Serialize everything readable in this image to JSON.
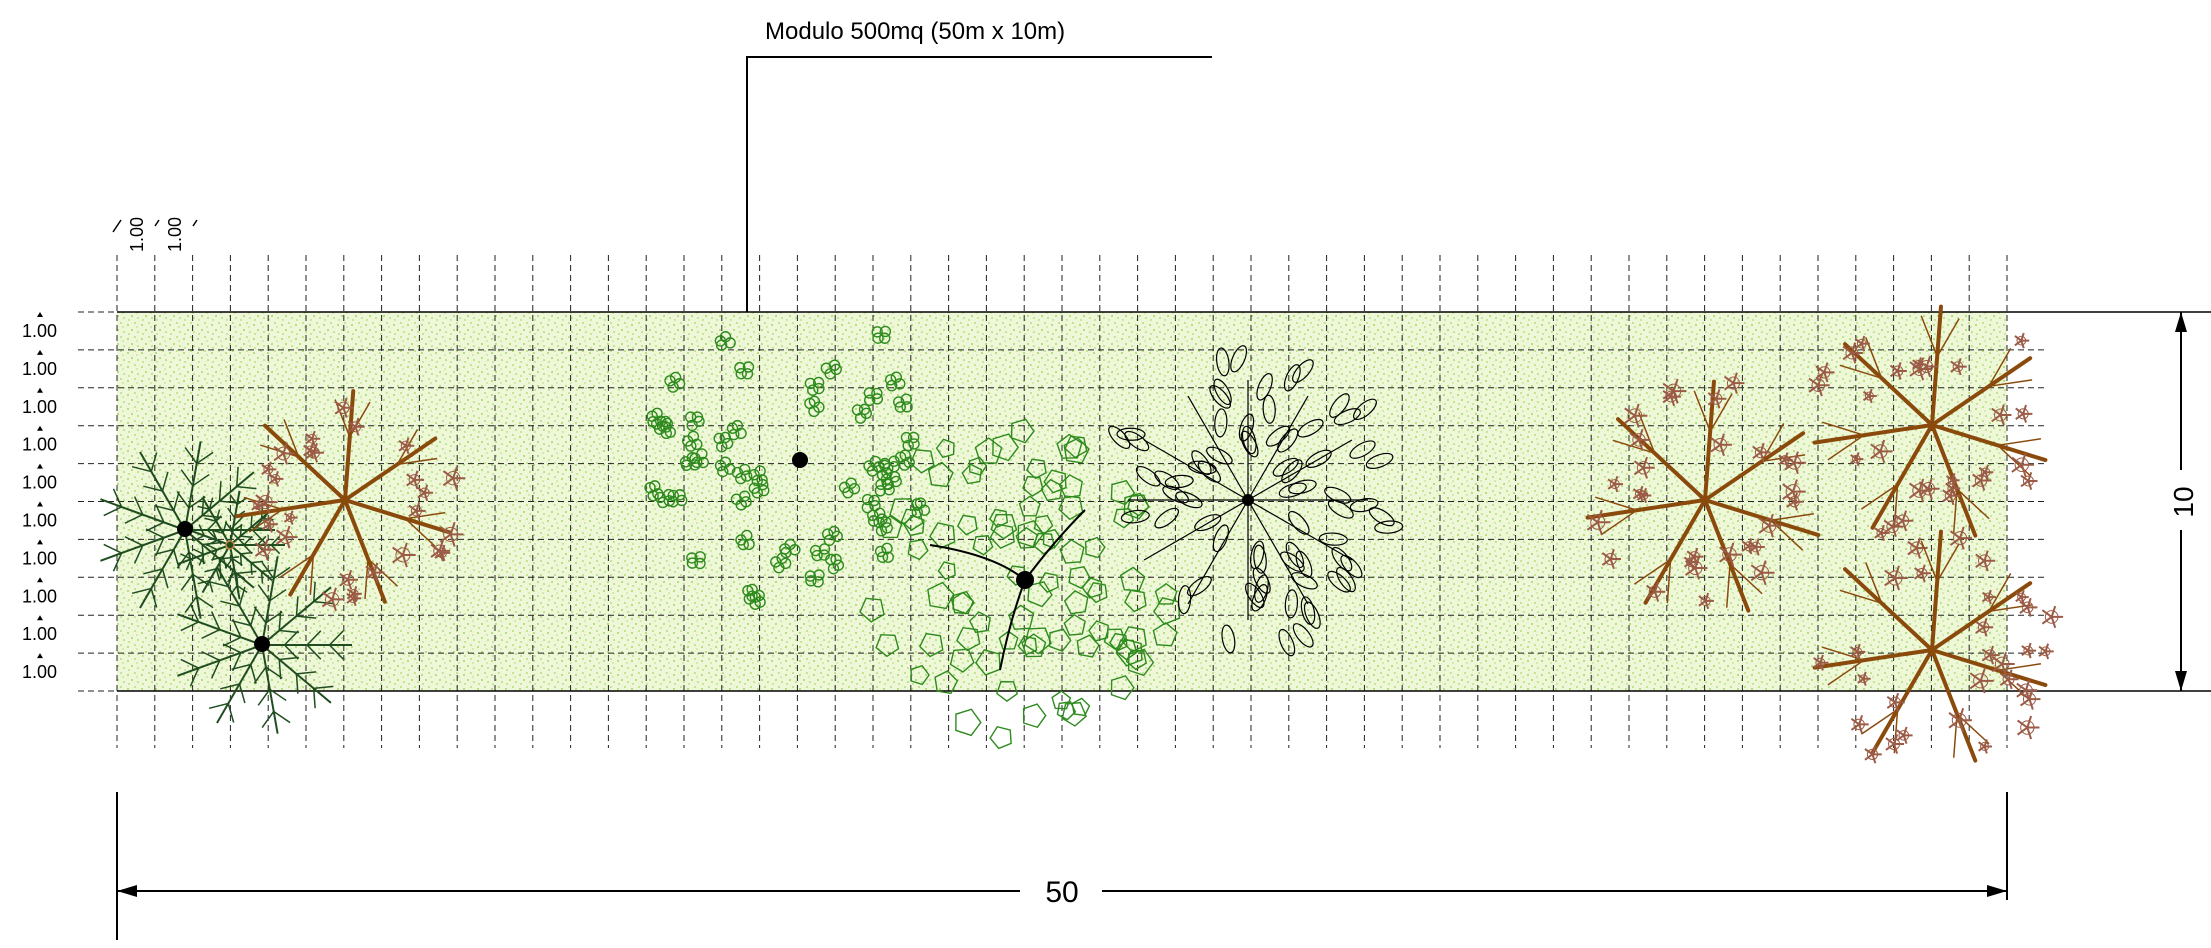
{
  "title": "Modulo 500mq (50m x 10m)",
  "dimensions": {
    "width_label": "50",
    "height_label": "10",
    "cell_label": "1.00",
    "columns": 50,
    "rows": 10
  },
  "colors": {
    "lawn_fill": "#eef7d8",
    "lawn_dots": "#8ccf3c",
    "grid": "#222222",
    "dark_green_tree": "#1f4d1f",
    "green_tree": "#2e8b1e",
    "brown_tree": "#9b5b46",
    "brown_trunk": "#8a4a0c",
    "black_tree": "#000000"
  },
  "trees": [
    {
      "kind": "dark-green-shrub-cluster",
      "color": "dark_green_tree"
    },
    {
      "kind": "brown-flowering-tree",
      "color": "brown_tree"
    },
    {
      "kind": "green-clover-tree",
      "color": "green_tree"
    },
    {
      "kind": "green-polygon-tree",
      "color": "green_tree"
    },
    {
      "kind": "black-leaf-tree",
      "color": "black_tree"
    },
    {
      "kind": "brown-flowering-tree",
      "color": "brown_tree"
    },
    {
      "kind": "brown-flowering-tree",
      "color": "brown_tree"
    },
    {
      "kind": "brown-flowering-tree",
      "color": "brown_tree"
    }
  ]
}
